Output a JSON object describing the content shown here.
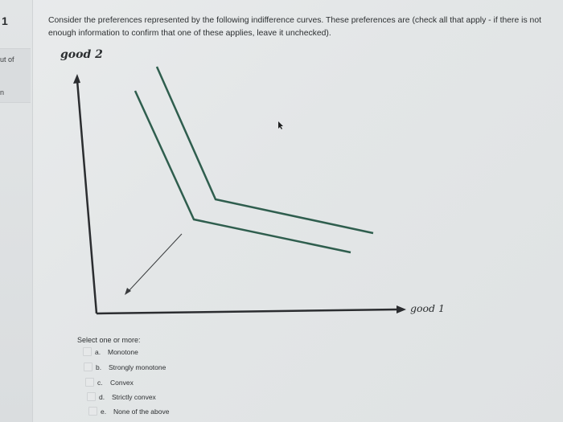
{
  "sidebar": {
    "question_number": "1",
    "points_fragment": "ut of",
    "flag_fragment": "n"
  },
  "question": {
    "text": "Consider the preferences represented by the following indifference curves. These preferences are (check all that apply - if there is not enough information to confirm that one of these applies, leave it unchecked)."
  },
  "figure": {
    "y_axis_label": "good 2",
    "x_axis_label": "good 1",
    "colors": {
      "axis": "#2b2d30",
      "curve": "#2f5e4e",
      "arrow": "#3a3c3e"
    }
  },
  "answers": {
    "prompt": "Select one or more:",
    "options": [
      {
        "letter": "a.",
        "label": "Monotone",
        "checked": false
      },
      {
        "letter": "b.",
        "label": "Strongly monotone",
        "checked": false
      },
      {
        "letter": "c.",
        "label": "Convex",
        "checked": false
      },
      {
        "letter": "d.",
        "label": "Strictly convex",
        "checked": false
      },
      {
        "letter": "e.",
        "label": "None of the above",
        "checked": false
      }
    ]
  }
}
